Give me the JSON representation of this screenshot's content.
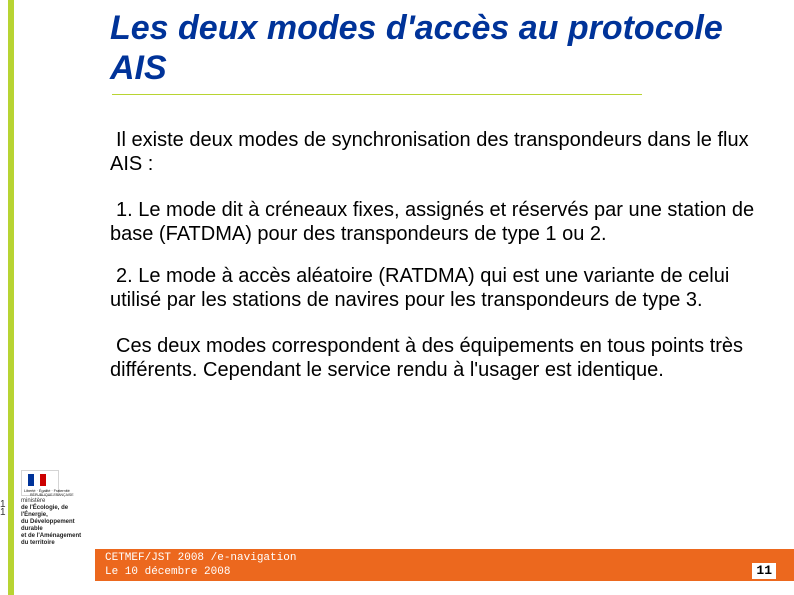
{
  "title": "Les deux modes d'accès au protocole AIS",
  "paragraphs": {
    "p1": "Il existe deux modes de synchronisation des transpondeurs dans le flux AIS :",
    "p2": "1.  Le mode dit à créneaux  fixes, assignés et réservés par une station de base (FATDMA) pour des transpondeurs de type 1 ou 2.",
    "p3": "2. Le mode à accès aléatoire (RATDMA) qui est une variante de celui utilisé par les stations de navires pour les transpondeurs de type 3.",
    "p4": "Ces deux modes correspondent à des équipements en tous points très différents. Cependant le service rendu à l'usager est identique."
  },
  "side_page": {
    "d1": "1",
    "d2": "1"
  },
  "logo": {
    "caption_top": "Liberté · Égalité · Fraternité",
    "caption_sub": "RÉPUBLIQUE FRANÇAISE",
    "ministry_l1": "ministère",
    "ministry_l2": "de l'Écologie, de l'Énergie,",
    "ministry_l3": "du Développement durable",
    "ministry_l4": "et de l'Aménagement",
    "ministry_l5": "du territoire"
  },
  "footer": {
    "line1": "CETMEF/JST 2008 /e-navigation",
    "line2": "Le 10 décembre 2008"
  },
  "page_number": "11",
  "colors": {
    "accent_green": "#b8d432",
    "title_blue": "#003399",
    "footer_orange": "#ec681e"
  }
}
